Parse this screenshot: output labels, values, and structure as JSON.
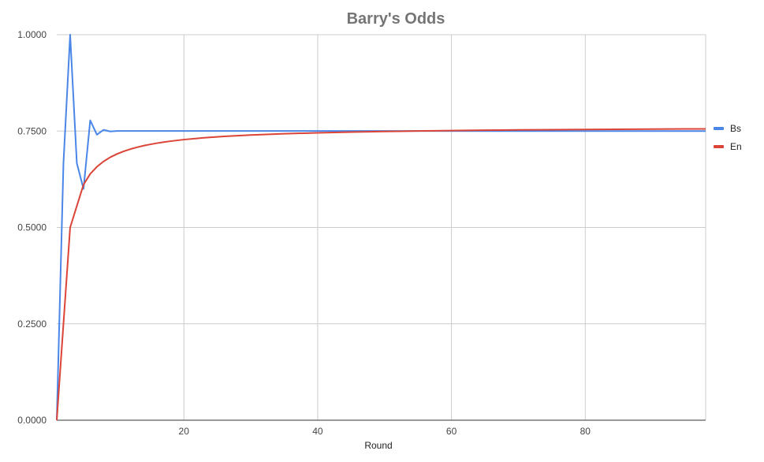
{
  "chart_data": {
    "type": "line",
    "title": "Barry's Odds",
    "xlabel": "Round",
    "ylabel": "",
    "xlim": [
      1,
      98
    ],
    "ylim": [
      0,
      1
    ],
    "x_ticks": [
      20,
      40,
      60,
      80
    ],
    "y_ticks": [
      "0.0000",
      "0.2500",
      "0.5000",
      "0.7500",
      "1.0000"
    ],
    "grid": true,
    "legend_position": "right",
    "series": [
      {
        "name": "Bs",
        "color": "#4a86e8",
        "points": [
          [
            1,
            0
          ],
          [
            2,
            0.6667
          ],
          [
            3,
            1.0
          ],
          [
            4,
            0.6667
          ],
          [
            5,
            0.6
          ],
          [
            6,
            0.7778
          ],
          [
            7,
            0.7407
          ],
          [
            8,
            0.7531
          ],
          [
            9,
            0.749
          ],
          [
            10,
            0.7503
          ],
          [
            98,
            0.75
          ]
        ]
      },
      {
        "name": "En",
        "color": "#db4437",
        "points": [
          [
            1,
            0
          ],
          [
            2,
            0.25
          ],
          [
            3,
            0.5
          ],
          [
            4,
            0.5556
          ],
          [
            5,
            0.6111
          ],
          [
            6,
            0.6389
          ],
          [
            7,
            0.6574
          ],
          [
            8,
            0.6713
          ],
          [
            9,
            0.6821
          ],
          [
            10,
            0.6906
          ],
          [
            11,
            0.6975
          ],
          [
            12,
            0.7032
          ],
          [
            13,
            0.708
          ],
          [
            14,
            0.7121
          ],
          [
            15,
            0.7156
          ],
          [
            16,
            0.7187
          ],
          [
            17,
            0.7214
          ],
          [
            18,
            0.7238
          ],
          [
            20,
            0.7279
          ],
          [
            23,
            0.7326
          ],
          [
            26,
            0.7363
          ],
          [
            30,
            0.7398
          ],
          [
            35,
            0.743
          ],
          [
            40,
            0.7455
          ],
          [
            45,
            0.7474
          ],
          [
            50,
            0.749
          ],
          [
            55,
            0.7502
          ],
          [
            60,
            0.7513
          ],
          [
            65,
            0.7522
          ],
          [
            70,
            0.753
          ],
          [
            75,
            0.7536
          ],
          [
            80,
            0.7542
          ],
          [
            85,
            0.7547
          ],
          [
            90,
            0.7551
          ],
          [
            95,
            0.7555
          ],
          [
            98,
            0.7557
          ]
        ]
      }
    ]
  }
}
